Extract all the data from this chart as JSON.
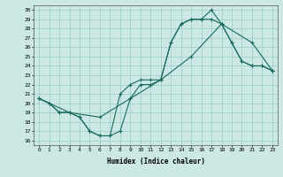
{
  "xlabel": "Humidex (Indice chaleur)",
  "bg_color": "#cce8e4",
  "grid_color": "#99ccc7",
  "line_color": "#1a6b5e",
  "xlim": [
    -0.5,
    23.5
  ],
  "ylim": [
    15.5,
    30.5
  ],
  "yticks": [
    16,
    17,
    18,
    19,
    20,
    21,
    22,
    23,
    24,
    25,
    26,
    27,
    28,
    29,
    30
  ],
  "xticks": [
    0,
    1,
    2,
    3,
    4,
    5,
    6,
    7,
    8,
    9,
    10,
    11,
    12,
    13,
    14,
    15,
    16,
    17,
    18,
    19,
    20,
    21,
    22,
    23
  ],
  "line1_x": [
    0,
    1,
    2,
    3,
    4,
    5,
    6,
    7,
    8,
    9,
    10,
    11,
    12,
    13,
    14,
    15,
    16,
    17,
    18,
    19,
    20,
    21,
    22,
    23
  ],
  "line1_y": [
    20.5,
    20.0,
    19.0,
    19.0,
    18.5,
    17.0,
    16.5,
    16.5,
    17.0,
    20.5,
    22.0,
    22.0,
    22.5,
    26.5,
    28.5,
    29.0,
    29.0,
    30.0,
    28.5,
    26.5,
    24.5,
    24.0,
    24.0,
    23.5
  ],
  "line2_x": [
    0,
    1,
    2,
    3,
    4,
    5,
    6,
    7,
    8,
    9,
    10,
    11,
    12,
    13,
    14,
    15,
    16,
    17,
    18,
    19,
    20,
    21,
    22,
    23
  ],
  "line2_y": [
    20.5,
    20.0,
    19.0,
    19.0,
    18.5,
    17.0,
    16.5,
    16.5,
    21.0,
    22.0,
    22.5,
    22.5,
    22.5,
    26.5,
    28.5,
    29.0,
    29.0,
    29.0,
    28.5,
    26.5,
    24.5,
    24.0,
    24.0,
    23.5
  ],
  "line3_x": [
    0,
    3,
    6,
    9,
    12,
    15,
    18,
    21,
    23
  ],
  "line3_y": [
    20.5,
    19.0,
    18.5,
    20.5,
    22.5,
    25.0,
    28.5,
    26.5,
    23.5
  ]
}
